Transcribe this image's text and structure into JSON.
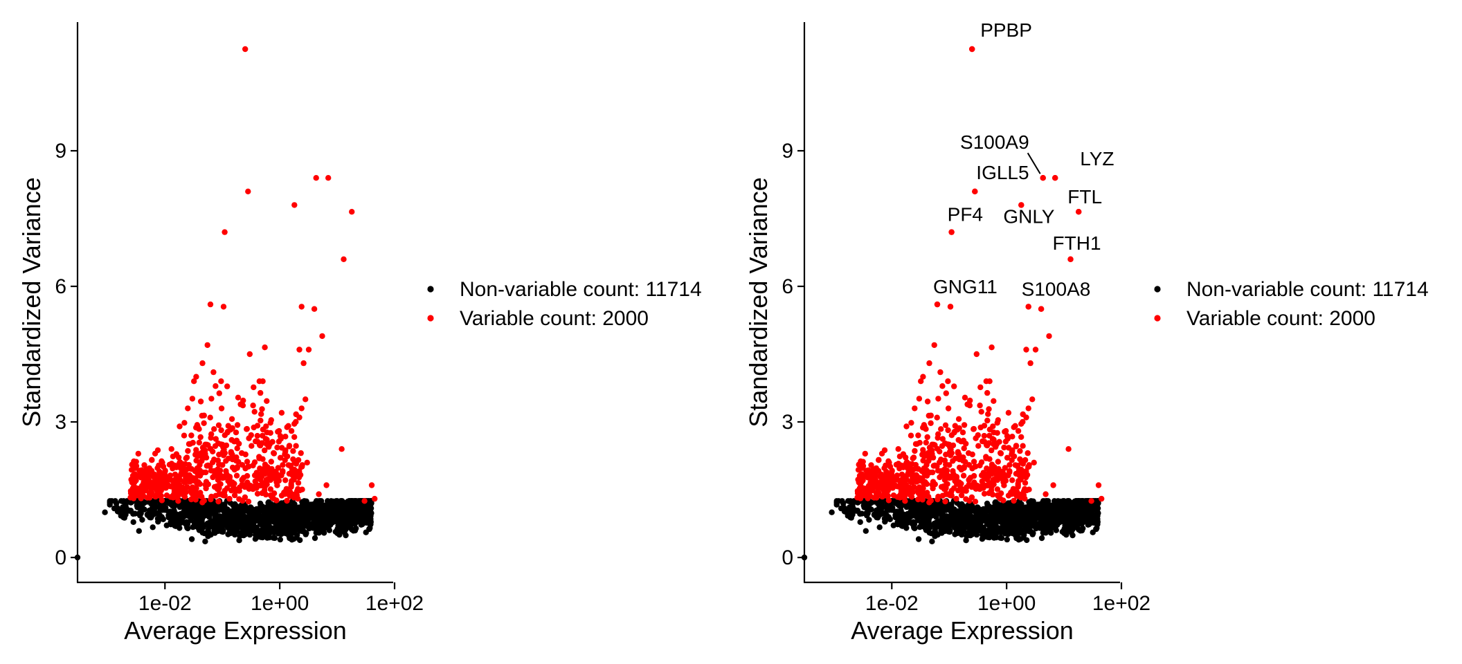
{
  "chart_data": [
    {
      "type": "scatter",
      "title": "",
      "xlabel": "Average Expression",
      "ylabel": "Standardized Variance",
      "xscale": "log10",
      "xlim": [
        0.0003,
        100
      ],
      "ylim": [
        -0.5,
        12
      ],
      "xticks": [
        {
          "value": 0.01,
          "label": "1e-02"
        },
        {
          "value": 1,
          "label": "1e+00"
        },
        {
          "value": 100,
          "label": "1e+02"
        }
      ],
      "yticks": [
        {
          "value": 0,
          "label": "0"
        },
        {
          "value": 3,
          "label": "3"
        },
        {
          "value": 6,
          "label": "6"
        },
        {
          "value": 9,
          "label": "9"
        }
      ],
      "grid": false,
      "legend_position": "right",
      "series": [
        {
          "name": "Non-variable count: 11714",
          "color": "#000000",
          "count": 11714
        },
        {
          "name": "Variable count: 2000",
          "color": "#ff0000",
          "count": 2000
        }
      ],
      "highlighted_points": [
        {
          "x": 0.25,
          "y": 11.25,
          "series": "Variable count: 2000"
        },
        {
          "x": 0.28,
          "y": 8.1,
          "series": "Variable count: 2000"
        },
        {
          "x": 4.3,
          "y": 8.4,
          "series": "Variable count: 2000"
        },
        {
          "x": 7.0,
          "y": 8.4,
          "series": "Variable count: 2000"
        },
        {
          "x": 1.8,
          "y": 7.8,
          "series": "Variable count: 2000"
        },
        {
          "x": 0.11,
          "y": 7.2,
          "series": "Variable count: 2000"
        },
        {
          "x": 18,
          "y": 7.65,
          "series": "Variable count: 2000"
        },
        {
          "x": 13,
          "y": 6.6,
          "series": "Variable count: 2000"
        },
        {
          "x": 0.062,
          "y": 5.6,
          "series": "Variable count: 2000"
        },
        {
          "x": 0.105,
          "y": 5.55,
          "series": "Variable count: 2000"
        },
        {
          "x": 2.4,
          "y": 5.55,
          "series": "Variable count: 2000"
        },
        {
          "x": 4.0,
          "y": 5.5,
          "series": "Variable count: 2000"
        }
      ],
      "gene_labels": []
    },
    {
      "type": "scatter",
      "title": "",
      "xlabel": "Average Expression",
      "ylabel": "Standardized Variance",
      "xscale": "log10",
      "xlim": [
        0.0003,
        100
      ],
      "ylim": [
        -0.5,
        12
      ],
      "xticks": [
        {
          "value": 0.01,
          "label": "1e-02"
        },
        {
          "value": 1,
          "label": "1e+00"
        },
        {
          "value": 100,
          "label": "1e+02"
        }
      ],
      "yticks": [
        {
          "value": 0,
          "label": "0"
        },
        {
          "value": 3,
          "label": "3"
        },
        {
          "value": 6,
          "label": "6"
        },
        {
          "value": 9,
          "label": "9"
        }
      ],
      "grid": false,
      "legend_position": "right",
      "series": [
        {
          "name": "Non-variable count: 11714",
          "color": "#000000",
          "count": 11714
        },
        {
          "name": "Variable count: 2000",
          "color": "#ff0000",
          "count": 2000
        }
      ],
      "highlighted_points": [
        {
          "x": 0.25,
          "y": 11.25,
          "series": "Variable count: 2000"
        },
        {
          "x": 0.28,
          "y": 8.1,
          "series": "Variable count: 2000"
        },
        {
          "x": 4.3,
          "y": 8.4,
          "series": "Variable count: 2000"
        },
        {
          "x": 7.0,
          "y": 8.4,
          "series": "Variable count: 2000"
        },
        {
          "x": 1.8,
          "y": 7.8,
          "series": "Variable count: 2000"
        },
        {
          "x": 0.11,
          "y": 7.2,
          "series": "Variable count: 2000"
        },
        {
          "x": 18,
          "y": 7.65,
          "series": "Variable count: 2000"
        },
        {
          "x": 13,
          "y": 6.6,
          "series": "Variable count: 2000"
        },
        {
          "x": 0.062,
          "y": 5.6,
          "series": "Variable count: 2000"
        },
        {
          "x": 0.105,
          "y": 5.55,
          "series": "Variable count: 2000"
        },
        {
          "x": 2.4,
          "y": 5.55,
          "series": "Variable count: 2000"
        },
        {
          "x": 4.0,
          "y": 5.5,
          "series": "Variable count: 2000"
        }
      ],
      "gene_labels": [
        {
          "text": "PPBP",
          "x": 0.25,
          "y": 11.25
        },
        {
          "text": "S100A9",
          "x": 4.3,
          "y": 8.4
        },
        {
          "text": "LYZ",
          "x": 7.0,
          "y": 8.4
        },
        {
          "text": "IGLL5",
          "x": 0.28,
          "y": 8.1
        },
        {
          "text": "FTL",
          "x": 18,
          "y": 7.65
        },
        {
          "text": "GNLY",
          "x": 1.8,
          "y": 7.8
        },
        {
          "text": "PF4",
          "x": 0.11,
          "y": 7.2
        },
        {
          "text": "FTH1",
          "x": 13,
          "y": 6.6
        },
        {
          "text": "GNG11",
          "x": 0.062,
          "y": 5.6
        },
        {
          "text": "S100A8",
          "x": 2.4,
          "y": 5.55
        }
      ]
    }
  ]
}
